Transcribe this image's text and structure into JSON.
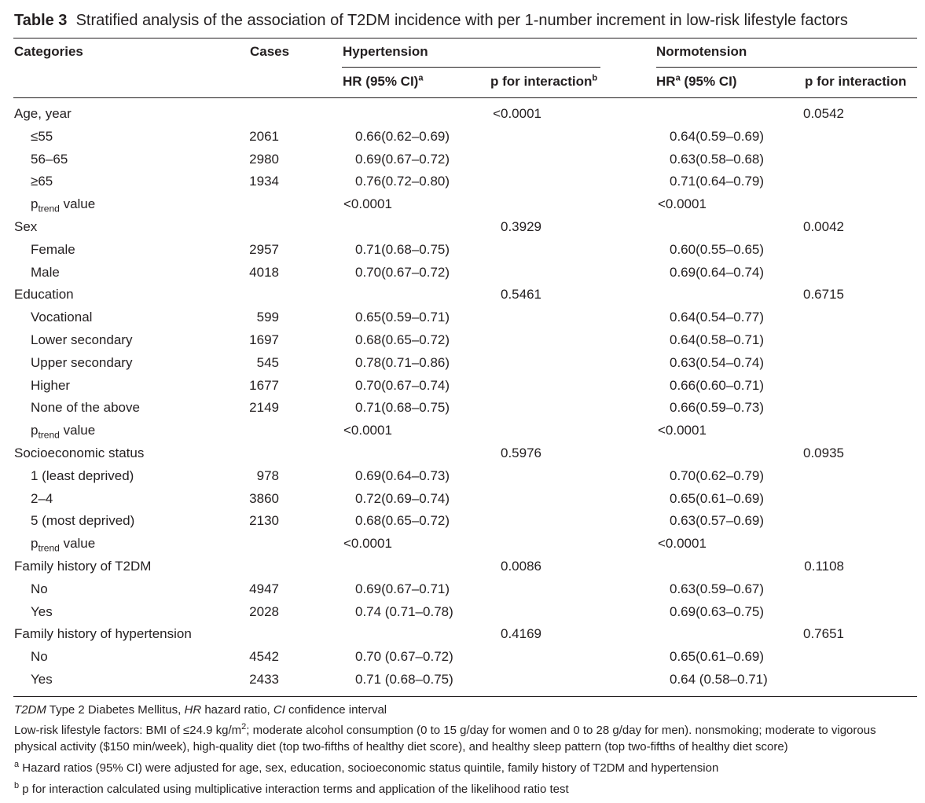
{
  "table": {
    "title_label": "Table 3",
    "title_text": "Stratified analysis of the association of T2DM incidence with per 1-number increment in low-risk lifestyle factors",
    "headers": {
      "categories": "Categories",
      "cases": "Cases",
      "hypertension": "Hypertension",
      "normotension": "Normotension",
      "hr_ci": "HR (95% CI)",
      "hr": "HR",
      "ci": "(95% CI)",
      "p_interaction": "p for interaction",
      "sup_a": "a",
      "sup_b": "b"
    },
    "ptrend_p": "p",
    "ptrend_sub": "trend",
    "ptrend_suffix": "value",
    "rows": [
      {
        "label": "Age, year",
        "indent": false,
        "cases": "",
        "hyp_hr": "",
        "hyp_p": "<0.0001",
        "norm_hr": "",
        "norm_p": "0.0542"
      },
      {
        "label": "≤55",
        "indent": true,
        "cases": "2061",
        "hyp_hr": "0.66(0.62–0.69)",
        "hyp_p": "",
        "norm_hr": "0.64(0.59–0.69)",
        "norm_p": ""
      },
      {
        "label": "56–65",
        "indent": true,
        "cases": "2980",
        "hyp_hr": "0.69(0.67–0.72)",
        "hyp_p": "",
        "norm_hr": "0.63(0.58–0.68)",
        "norm_p": ""
      },
      {
        "label": "≥65",
        "indent": true,
        "cases": "1934",
        "hyp_hr": "0.76(0.72–0.80)",
        "hyp_p": "",
        "norm_hr": "0.71(0.64–0.79)",
        "norm_p": ""
      },
      {
        "label": "",
        "ptrend": true,
        "indent": true,
        "cases": "",
        "hyp_hr": "<0.0001",
        "hyp_p": "",
        "norm_hr": "<0.0001",
        "norm_p": ""
      },
      {
        "label": "Sex",
        "indent": false,
        "cases": "",
        "hyp_hr": "",
        "hyp_p": "0.3929",
        "norm_hr": "",
        "norm_p": "0.0042"
      },
      {
        "label": "Female",
        "indent": true,
        "cases": "2957",
        "hyp_hr": "0.71(0.68–0.75)",
        "hyp_p": "",
        "norm_hr": "0.60(0.55–0.65)",
        "norm_p": ""
      },
      {
        "label": "Male",
        "indent": true,
        "cases": "4018",
        "hyp_hr": "0.70(0.67–0.72)",
        "hyp_p": "",
        "norm_hr": "0.69(0.64–0.74)",
        "norm_p": ""
      },
      {
        "label": "Education",
        "indent": false,
        "cases": "",
        "hyp_hr": "",
        "hyp_p": "0.5461",
        "norm_hr": "",
        "norm_p": "0.6715"
      },
      {
        "label": "Vocational",
        "indent": true,
        "cases": "599",
        "hyp_hr": "0.65(0.59–0.71)",
        "hyp_p": "",
        "norm_hr": "0.64(0.54–0.77)",
        "norm_p": ""
      },
      {
        "label": "Lower secondary",
        "indent": true,
        "cases": "1697",
        "hyp_hr": "0.68(0.65–0.72)",
        "hyp_p": "",
        "norm_hr": "0.64(0.58–0.71)",
        "norm_p": ""
      },
      {
        "label": "Upper secondary",
        "indent": true,
        "cases": "545",
        "hyp_hr": "0.78(0.71–0.86)",
        "hyp_p": "",
        "norm_hr": "0.63(0.54–0.74)",
        "norm_p": ""
      },
      {
        "label": "Higher",
        "indent": true,
        "cases": "1677",
        "hyp_hr": "0.70(0.67–0.74)",
        "hyp_p": "",
        "norm_hr": "0.66(0.60–0.71)",
        "norm_p": ""
      },
      {
        "label": "None of the above",
        "indent": true,
        "cases": "2149",
        "hyp_hr": "0.71(0.68–0.75)",
        "hyp_p": "",
        "norm_hr": "0.66(0.59–0.73)",
        "norm_p": ""
      },
      {
        "label": "",
        "ptrend": true,
        "indent": true,
        "cases": "",
        "hyp_hr": "<0.0001",
        "hyp_p": "",
        "norm_hr": "<0.0001",
        "norm_p": ""
      },
      {
        "label": "Socioeconomic status",
        "indent": false,
        "cases": "",
        "hyp_hr": "",
        "hyp_p": "0.5976",
        "norm_hr": "",
        "norm_p": "0.0935"
      },
      {
        "label": "1 (least deprived)",
        "indent": true,
        "cases": "978",
        "hyp_hr": "0.69(0.64–0.73)",
        "hyp_p": "",
        "norm_hr": "0.70(0.62–0.79)",
        "norm_p": ""
      },
      {
        "label": "2–4",
        "indent": true,
        "cases": "3860",
        "hyp_hr": "0.72(0.69–0.74)",
        "hyp_p": "",
        "norm_hr": "0.65(0.61–0.69)",
        "norm_p": ""
      },
      {
        "label": "5 (most deprived)",
        "indent": true,
        "cases": "2130",
        "hyp_hr": "0.68(0.65–0.72)",
        "hyp_p": "",
        "norm_hr": "0.63(0.57–0.69)",
        "norm_p": ""
      },
      {
        "label": "",
        "ptrend": true,
        "indent": true,
        "cases": "",
        "hyp_hr": "<0.0001",
        "hyp_p": "",
        "norm_hr": "<0.0001",
        "norm_p": ""
      },
      {
        "label": "Family history of T2DM",
        "indent": false,
        "cases": "",
        "hyp_hr": "",
        "hyp_p": "0.0086",
        "norm_hr": "",
        "norm_p": "0.1108"
      },
      {
        "label": "No",
        "indent": true,
        "cases": "4947",
        "hyp_hr": "0.69(0.67–0.71)",
        "hyp_p": "",
        "norm_hr": "0.63(0.59–0.67)",
        "norm_p": ""
      },
      {
        "label": "Yes",
        "indent": true,
        "cases": "2028",
        "hyp_hr": "0.74 (0.71–0.78)",
        "hyp_p": "",
        "norm_hr": "0.69(0.63–0.75)",
        "norm_p": ""
      },
      {
        "label": "Family history of hypertension",
        "indent": false,
        "cases": "",
        "hyp_hr": "",
        "hyp_p": "0.4169",
        "norm_hr": "",
        "norm_p": "0.7651"
      },
      {
        "label": "No",
        "indent": true,
        "cases": "4542",
        "hyp_hr": "0.70 (0.67–0.72)",
        "hyp_p": "",
        "norm_hr": "0.65(0.61–0.69)",
        "norm_p": ""
      },
      {
        "label": "Yes",
        "indent": true,
        "cases": "2433",
        "hyp_hr": "0.71 (0.68–0.75)",
        "hyp_p": "",
        "norm_hr": "0.64 (0.58–0.71)",
        "norm_p": ""
      }
    ]
  },
  "footnotes": {
    "abbr_t2dm": "T2DM",
    "abbr_t2dm_def": " Type 2 Diabetes Mellitus, ",
    "abbr_hr": "HR",
    "abbr_hr_def": " hazard ratio, ",
    "abbr_ci": "CI",
    "abbr_ci_def": " confidence interval",
    "lifestyle_pre": "Low-risk lifestyle factors: BMI of ≤24.9 kg/m",
    "lifestyle_sup": "2",
    "lifestyle_post": "; moderate alcohol consumption (0 to 15 g/day for women and 0 to 28 g/day for men). nonsmoking; moderate to vigorous physical activity ($150 min/week), high-quality diet (top two-fifths of healthy diet score), and healthy sleep pattern (top two-fifths of healthy diet score)",
    "note_a_mark": "a",
    "note_a_text": "Hazard ratios (95% CI) were adjusted for age, sex, education, socioeconomic status quintile, family history of T2DM and hypertension",
    "note_b_mark": "b",
    "note_b_text": "p for interaction calculated using multiplicative interaction terms and application of the likelihood ratio test"
  }
}
